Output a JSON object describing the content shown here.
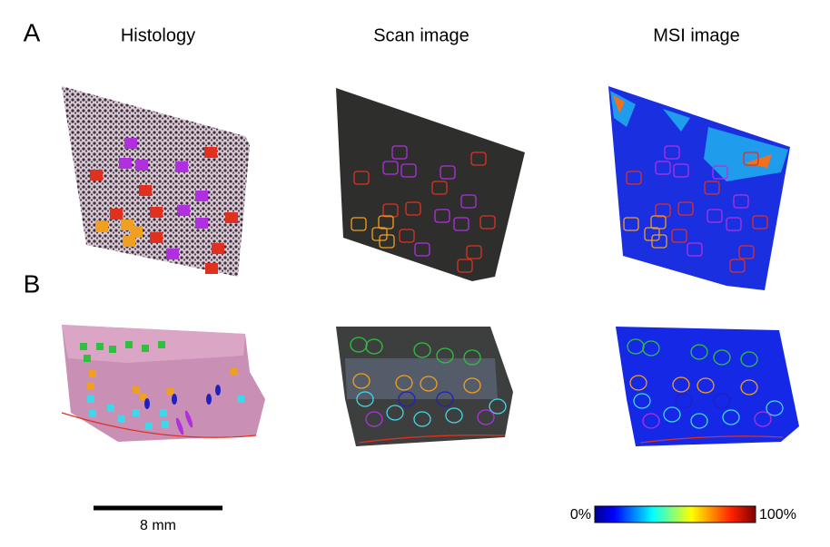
{
  "figure": {
    "panel_labels": [
      "A",
      "B"
    ],
    "column_titles": [
      "Histology",
      "Scan image",
      "MSI image"
    ],
    "scale_bar": {
      "label": "8 mm"
    },
    "colorbar": {
      "min_label": "0%",
      "max_label": "100%"
    }
  }
}
